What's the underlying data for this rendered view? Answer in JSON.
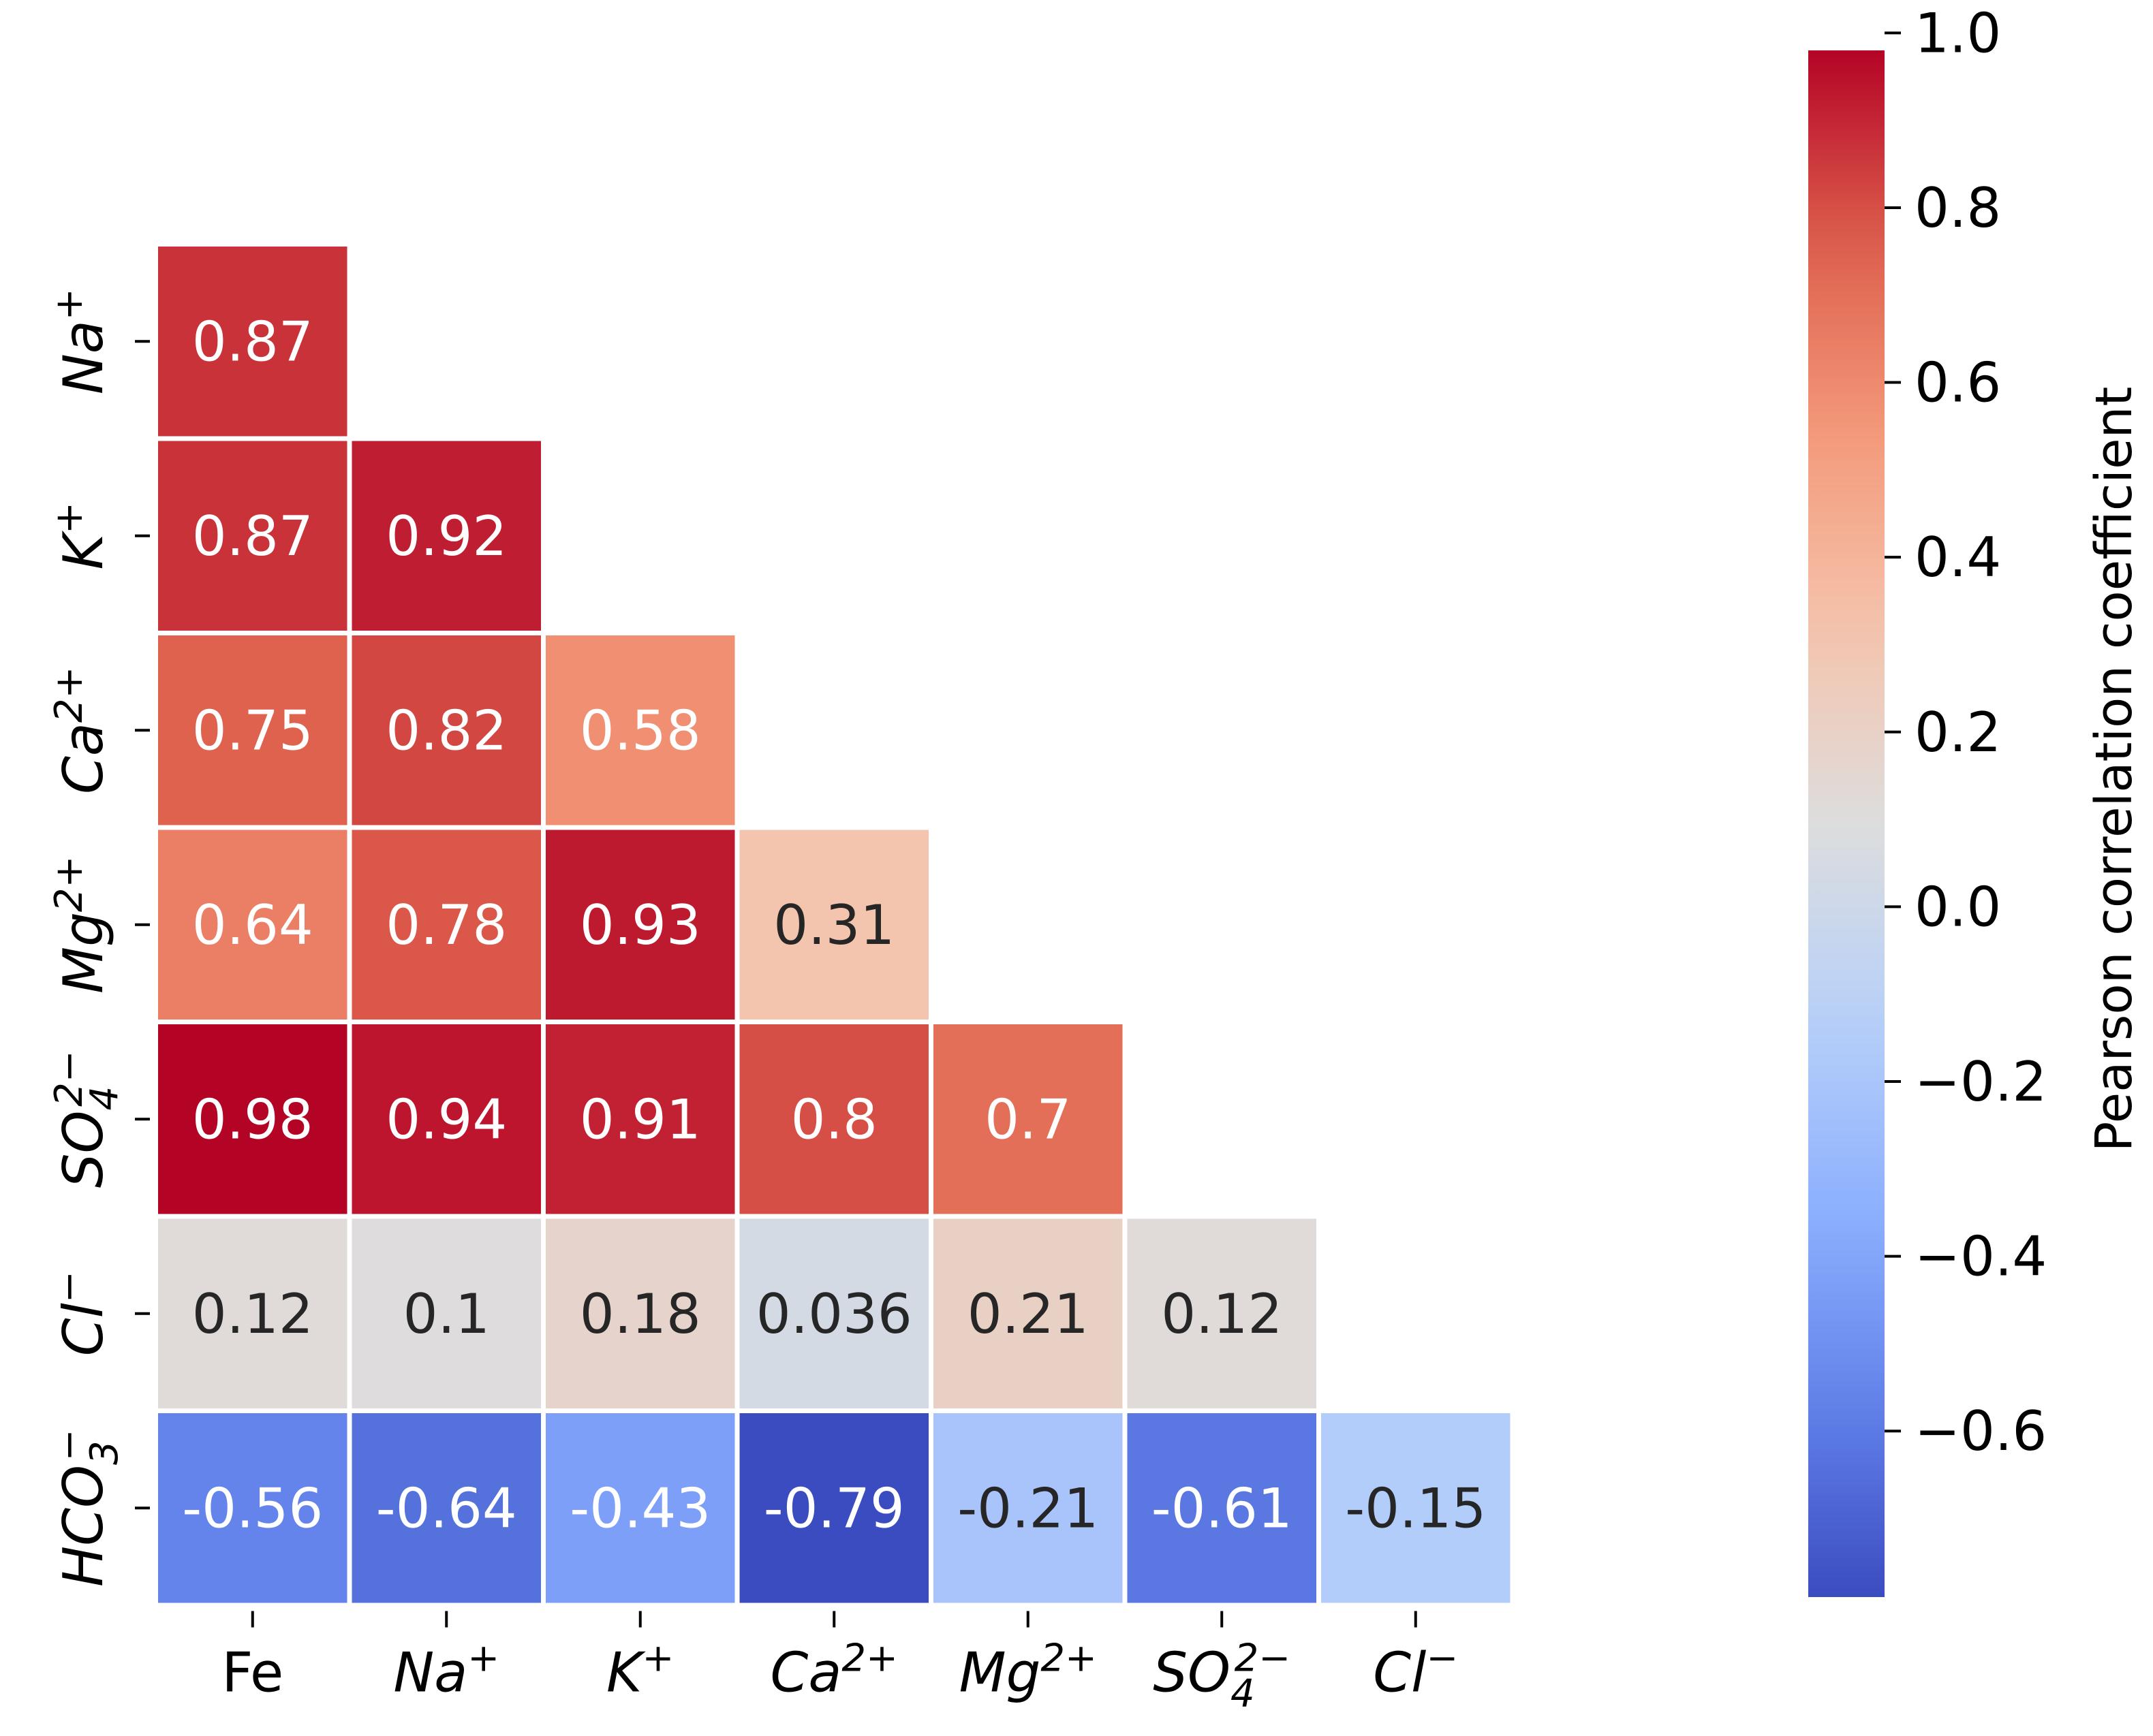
{
  "chart_data": {
    "type": "heatmap",
    "title": "",
    "mask": "lower-triangle",
    "x_labels": [
      "Fe",
      "Na+",
      "K+",
      "Ca2+",
      "Mg2+",
      "SO42−",
      "Cl−"
    ],
    "y_labels": [
      "Na+",
      "K+",
      "Ca2+",
      "Mg2+",
      "SO42−",
      "Cl−",
      "HCO3−"
    ],
    "rows": [
      {
        "label": "Na+",
        "values": [
          "0.87"
        ]
      },
      {
        "label": "K+",
        "values": [
          "0.87",
          "0.92"
        ]
      },
      {
        "label": "Ca2+",
        "values": [
          "0.75",
          "0.82",
          "0.58"
        ]
      },
      {
        "label": "Mg2+",
        "values": [
          "0.64",
          "0.78",
          "0.93",
          "0.31"
        ]
      },
      {
        "label": "SO42−",
        "values": [
          "0.98",
          "0.94",
          "0.91",
          "0.8",
          "0.7"
        ]
      },
      {
        "label": "Cl−",
        "values": [
          "0.12",
          "0.1",
          "0.18",
          "0.036",
          "0.21",
          "0.12"
        ]
      },
      {
        "label": "HCO3−",
        "values": [
          "-0.56",
          "-0.64",
          "-0.43",
          "-0.79",
          "-0.21",
          "-0.61",
          "-0.15"
        ]
      }
    ],
    "colorscale": "coolwarm",
    "vmin": -0.79,
    "vmax": 0.98,
    "colorbar": {
      "label": "Pearson correlation coefficient",
      "ticks": [
        1.0,
        0.8,
        0.6,
        0.4,
        0.2,
        0.0,
        -0.2,
        -0.4,
        -0.6
      ],
      "tick_labels": [
        "1.0",
        "0.8",
        "0.6",
        "0.4",
        "0.2",
        "0.0",
        "−0.2",
        "−0.4",
        "−0.6"
      ]
    }
  }
}
